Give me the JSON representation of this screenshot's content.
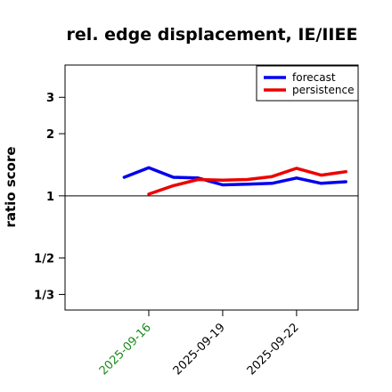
{
  "chart_data": {
    "type": "line",
    "title": "rel. edge displacement, IE/IIEE",
    "ylabel": "ratio score",
    "xlabel": "",
    "y_scale": "log",
    "ylim": [
      0.28,
      4.3
    ],
    "xlim": [
      -3.4,
      8.5
    ],
    "y_ticks": [
      {
        "value": 3,
        "label": "3"
      },
      {
        "value": 2,
        "label": "2"
      },
      {
        "value": 1,
        "label": "1"
      },
      {
        "value": 0.5,
        "label": "1/2"
      },
      {
        "value": 0.3333,
        "label": "1/3"
      }
    ],
    "x_ticks": [
      {
        "value": 0,
        "label": "2025-09-16",
        "color": "#1a8a1a"
      },
      {
        "value": 3,
        "label": "2025-09-19",
        "color": "#000000"
      },
      {
        "value": 6,
        "label": "2025-09-22",
        "color": "#000000"
      }
    ],
    "reference_line": 1,
    "legend_position": "top-right",
    "series": [
      {
        "name": "forecast",
        "color": "#0000ee",
        "x": [
          -1,
          0,
          1,
          2,
          3,
          4,
          5,
          6,
          7,
          8
        ],
        "values": [
          1.23,
          1.37,
          1.23,
          1.22,
          1.13,
          1.14,
          1.15,
          1.22,
          1.15,
          1.17
        ]
      },
      {
        "name": "persistence",
        "color": "#ee0000",
        "x": [
          0,
          1,
          2,
          3,
          4,
          5,
          6,
          7,
          8
        ],
        "values": [
          1.02,
          1.12,
          1.2,
          1.19,
          1.2,
          1.24,
          1.36,
          1.26,
          1.31
        ]
      }
    ]
  }
}
